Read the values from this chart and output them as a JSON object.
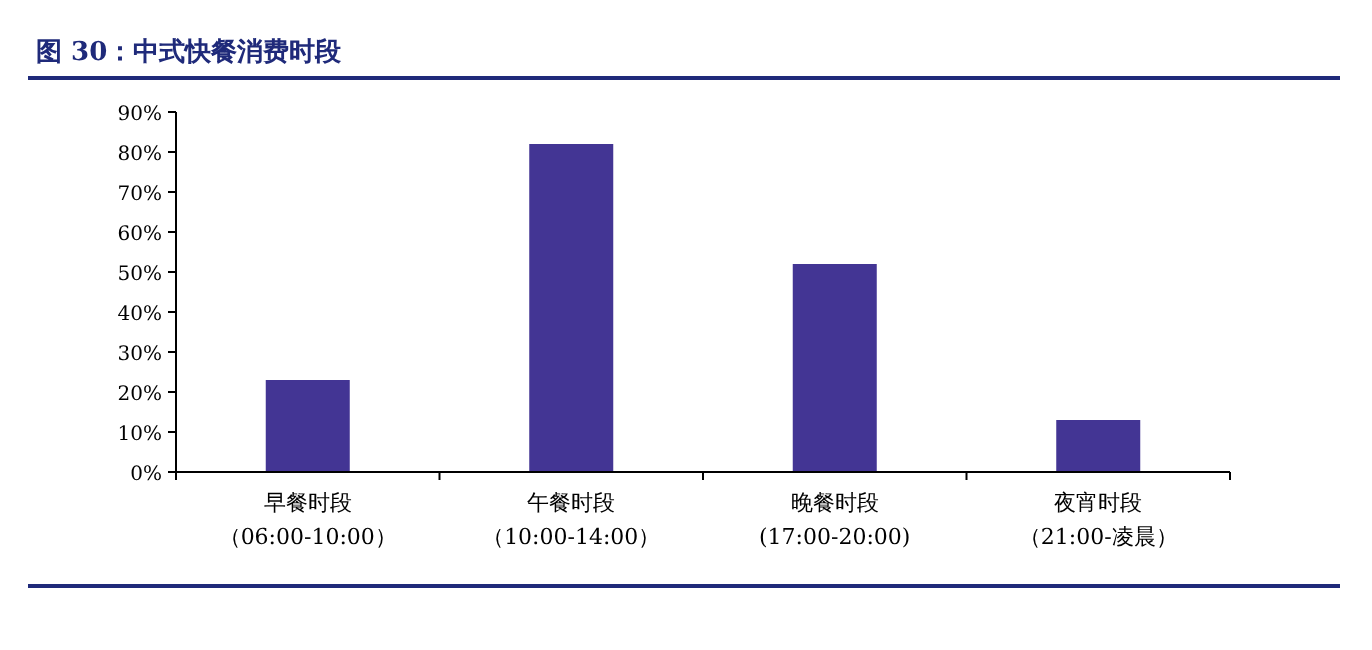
{
  "chart_data": {
    "type": "bar",
    "title": "图 30：中式快餐消费时段",
    "categories": [
      "早餐时段（06:00-10:00）",
      "午餐时段（10:00-14:00）",
      "晚餐时段(17:00-20:00)",
      "夜宵时段（21:00-凌晨）"
    ],
    "values": [
      23,
      82,
      52,
      13
    ],
    "color": "#433594",
    "ylim": [
      0,
      90
    ],
    "yticks": [
      {
        "value": 0,
        "label": "0%"
      },
      {
        "value": 10,
        "label": "10%"
      },
      {
        "value": 20,
        "label": "20%"
      },
      {
        "value": 30,
        "label": "30%"
      },
      {
        "value": 40,
        "label": "40%"
      },
      {
        "value": 50,
        "label": "50%"
      },
      {
        "value": 60,
        "label": "60%"
      },
      {
        "value": 70,
        "label": "70%"
      },
      {
        "value": 80,
        "label": "80%"
      },
      {
        "value": 90,
        "label": "90%"
      }
    ],
    "grid": false
  }
}
